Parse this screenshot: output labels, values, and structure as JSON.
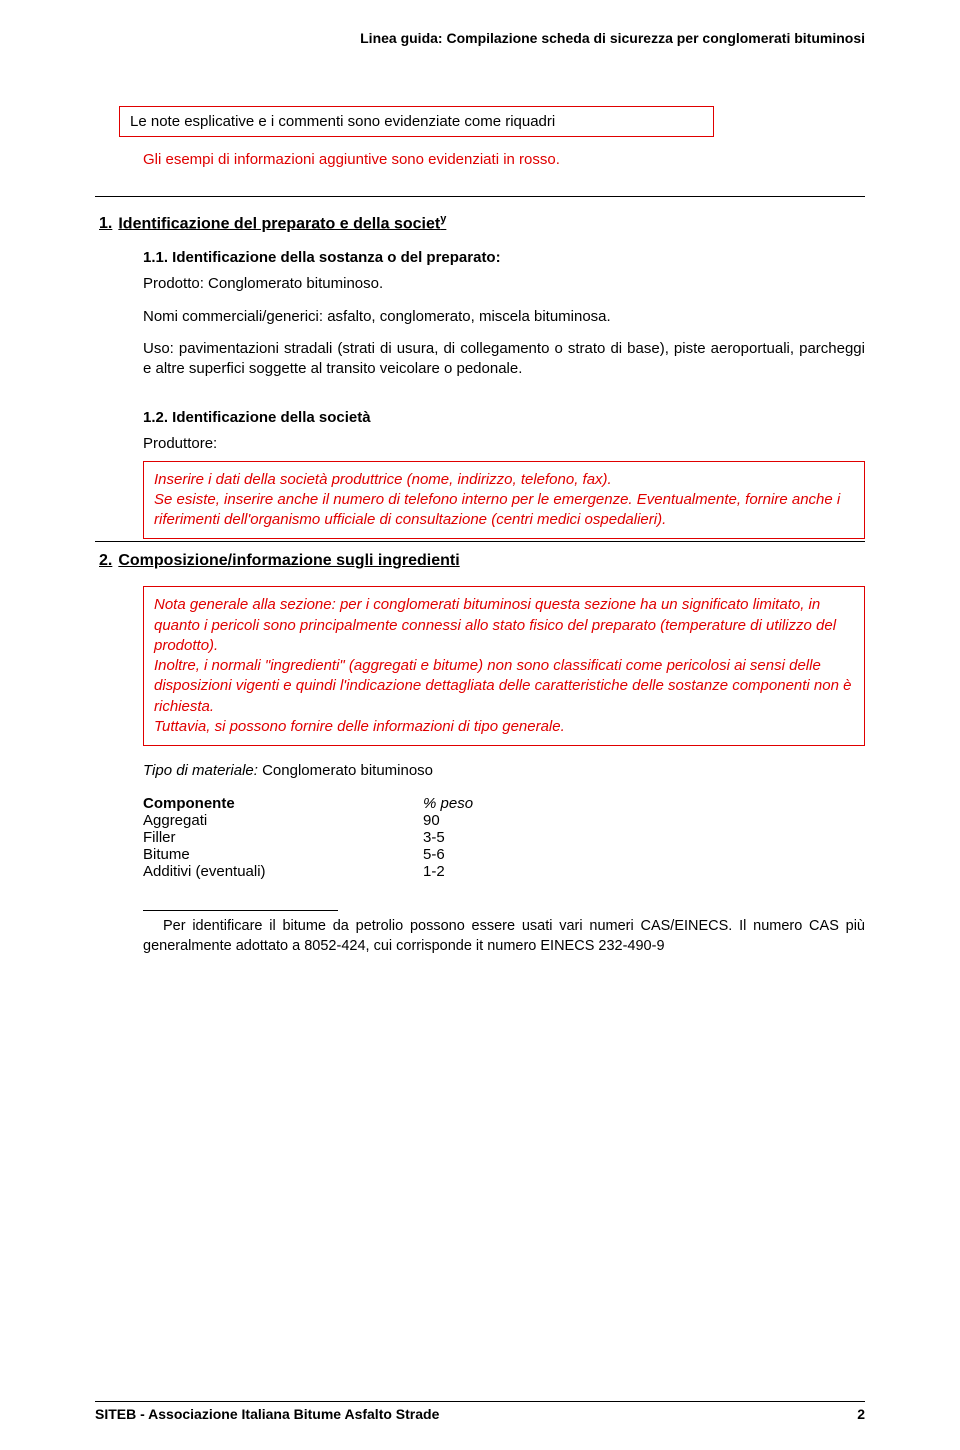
{
  "colors": {
    "red": "#e00000",
    "black": "#000000",
    "white": "#ffffff"
  },
  "fonts": {
    "body_pt": 15,
    "header_pt": 14,
    "footnote_pt": 14.5
  },
  "header": {
    "title": "Linea guida: Compilazione scheda di sicurezza per conglomerati bituminosi"
  },
  "intro": {
    "note_box": "Le note esplicative e i commenti sono evidenziate come riquadri",
    "example_line": "Gli esempi di informazioni aggiuntive sono evidenziati in rosso."
  },
  "section1": {
    "heading_num": "1.",
    "heading": "Identificazione del preparato e della societ",
    "heading_sup": "y",
    "s11": {
      "title": "1.1. Identificazione della sostanza o del preparato:",
      "prodotto": "Prodotto: Conglomerato bituminoso.",
      "nomi": "Nomi commerciali/generici: asfalto, conglomerato, miscela bituminosa.",
      "uso": "Uso: pavimentazioni stradali (strati di usura, di collegamento o strato di base), piste aeroportuali, parcheggi e altre superfici soggette al transito veicolare o pedonale."
    },
    "s12": {
      "title": "1.2. Identificazione della società",
      "produttore": "Produttore:",
      "box": "Inserire i dati della società produttrice (nome, indirizzo, telefono, fax).\nSe esiste, inserire anche il numero di telefono interno per le emergenze. Eventualmente, fornire anche i riferimenti dell'organismo ufficiale di consultazione (centri medici ospedalieri)."
    }
  },
  "section2": {
    "heading_num": "2.",
    "heading": "Composizione/informazione sugli ingredienti",
    "box": "Nota generale alla sezione: per i conglomerati bituminosi questa sezione ha un significato limitato, in quanto i pericoli sono principalmente connessi allo stato fisico del preparato (temperature di utilizzo del prodotto).\nInoltre, i normali \"ingredienti\" (aggregati e bitume) non sono classificati come pericolosi ai sensi delle disposizioni vigenti e quindi l'indicazione dettagliata delle caratteristiche delle sostanze componenti non è richiesta.\nTuttavia, si possono fornire delle informazioni di tipo generale.",
    "tipo_label": "Tipo di materiale:",
    "tipo_value": " Conglomerato bituminoso",
    "table": {
      "columns": [
        "Componente",
        "% peso"
      ],
      "rows": [
        [
          "Aggregati",
          "90"
        ],
        [
          "Filler",
          "3-5"
        ],
        [
          "Bitume",
          "5-6"
        ],
        [
          "Additivi (eventuali)",
          "1-2"
        ]
      ]
    },
    "footnote": "Per identificare il bitume da petrolio possono essere usati vari numeri CAS/EINECS. Il numero CAS più generalmente adottato a 8052-424, cui corrisponde it numero EINECS 232-490-9"
  },
  "footer": {
    "org": "SITEB - Associazione Italiana Bitume Asfalto Strade",
    "page": "2"
  }
}
